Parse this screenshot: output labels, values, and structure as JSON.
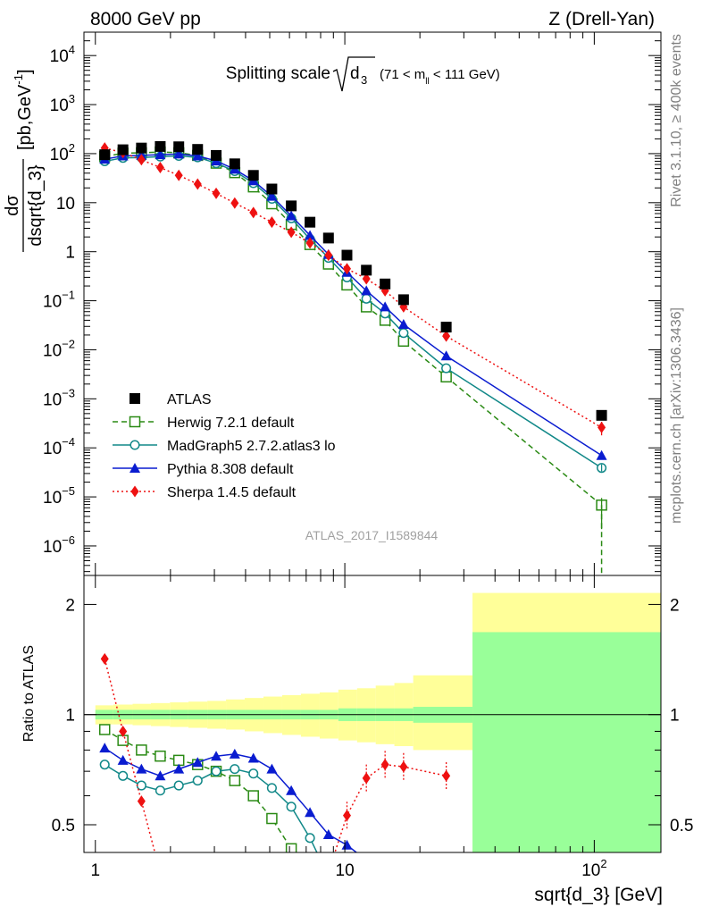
{
  "header": {
    "left": "8000 GeV pp",
    "right": "Z (Drell-Yan)"
  },
  "side_text": {
    "rivet": "Rivet 3.1.10, ≥ 400k events",
    "mcplots": "mcplots.cern.ch [arXiv:1306.3436]"
  },
  "watermark": "ATLAS_2017_I1589844",
  "colors": {
    "atlas": "#000000",
    "herwig": "#2a8a14",
    "madgraph": "#118888",
    "pythia": "#0a1cd0",
    "sherpa": "#ee1111",
    "band_outer": "#ffff99",
    "band_inner": "#99ff99"
  },
  "chart_data": [
    {
      "type": "line",
      "title_main": "Splitting scale",
      "title_sqrt": "d",
      "title_sub": "3",
      "title_range": "(71 < m",
      "title_range_sub": "ll",
      "title_range_end": " < 111 GeV)",
      "ylabel_num": "dσ",
      "ylabel_den": "dsqrt{d_3}",
      "ylabel_unit": "[pb,GeV",
      "ylabel_unit_sup": "-1",
      "ylabel_unit_end": "]",
      "xscale": "log",
      "yscale": "log",
      "xlim": [
        0.9,
        185
      ],
      "ylim": [
        2.5e-07,
        30000.0
      ],
      "x_tick_labels": [
        "1",
        "10",
        "10²"
      ],
      "y_tick_labels": [
        {
          "b": "10",
          "e": "4"
        },
        {
          "b": "10",
          "e": "3"
        },
        {
          "b": "10",
          "e": "2"
        },
        {
          "b": "10",
          "e": ""
        },
        {
          "b": "1",
          "e": ""
        },
        {
          "b": "10",
          "e": "−1"
        },
        {
          "b": "10",
          "e": "−2"
        },
        {
          "b": "10",
          "e": "−3"
        },
        {
          "b": "10",
          "e": "−4"
        },
        {
          "b": "10",
          "e": "−5"
        },
        {
          "b": "10",
          "e": "−6"
        }
      ],
      "legend_position": "bottom-left",
      "series": [
        {
          "name": "ATLAS",
          "key": "atlas",
          "x": [
            1.09,
            1.29,
            1.53,
            1.82,
            2.16,
            2.57,
            3.05,
            3.62,
            4.3,
            5.1,
            6.1,
            7.25,
            8.6,
            10.2,
            12.2,
            14.5,
            17.2,
            25.5,
            107
          ],
          "y": [
            95,
            120,
            130,
            140,
            138,
            122,
            92,
            62,
            36,
            19,
            8.6,
            4.0,
            1.9,
            0.85,
            0.42,
            0.22,
            0.105,
            0.029,
            0.00046
          ]
        },
        {
          "name": "Herwig 7.2.1 default",
          "key": "herwig",
          "x": [
            1.09,
            1.29,
            1.53,
            1.82,
            2.16,
            2.57,
            3.05,
            3.62,
            4.3,
            5.1,
            6.1,
            7.25,
            8.6,
            10.2,
            12.2,
            14.5,
            17.2,
            25.5,
            107
          ],
          "y": [
            87,
            102,
            104,
            108,
            104,
            92,
            64,
            41,
            21,
            9.5,
            3.6,
            1.4,
            0.56,
            0.21,
            0.075,
            0.04,
            0.015,
            0.0028,
            6.8e-06
          ]
        },
        {
          "name": "MadGraph5 2.7.2.atlas3 lo",
          "key": "madgraph",
          "x": [
            1.09,
            1.29,
            1.53,
            1.82,
            2.16,
            2.57,
            3.05,
            3.62,
            4.3,
            5.1,
            6.1,
            7.25,
            8.6,
            10.2,
            12.2,
            14.5,
            17.2,
            25.5,
            107
          ],
          "y": [
            70,
            82,
            83,
            87,
            90,
            84,
            64,
            44,
            25,
            12,
            4.8,
            1.8,
            0.75,
            0.3,
            0.11,
            0.055,
            0.022,
            0.0042,
            3.9e-05
          ]
        },
        {
          "name": "Pythia 8.308 default",
          "key": "pythia",
          "x": [
            1.09,
            1.29,
            1.53,
            1.82,
            2.16,
            2.57,
            3.05,
            3.62,
            4.3,
            5.1,
            6.1,
            7.25,
            8.6,
            10.2,
            12.2,
            14.5,
            17.2,
            25.5,
            107
          ],
          "y": [
            77,
            90,
            92,
            95,
            98,
            90,
            71,
            48,
            28,
            13.5,
            5.4,
            2.15,
            0.88,
            0.38,
            0.16,
            0.075,
            0.033,
            0.0075,
            7e-05
          ]
        },
        {
          "name": "Sherpa 1.4.5 default",
          "key": "sherpa",
          "x": [
            1.09,
            1.29,
            1.53,
            1.82,
            2.16,
            2.57,
            3.05,
            3.62,
            4.3,
            5.1,
            6.1,
            7.25,
            8.6,
            10.2,
            12.2,
            14.5,
            17.2,
            25.5,
            107
          ],
          "y": [
            130,
            105,
            75,
            52,
            36,
            24,
            15.5,
            9.8,
            6.3,
            4.0,
            2.5,
            1.5,
            0.85,
            0.45,
            0.28,
            0.16,
            0.075,
            0.019,
            0.00026
          ]
        }
      ]
    },
    {
      "type": "line",
      "ylabel": "Ratio to ATLAS",
      "xlabel": "sqrt{d_3} [GeV]",
      "xscale": "log",
      "yscale": "log",
      "xlim": [
        0.9,
        185
      ],
      "ylim": [
        0.42,
        2.4
      ],
      "y_tick_labels": [
        "0.5",
        "1",
        "2"
      ],
      "x_tick_labels": [
        "1",
        "10",
        "10²"
      ],
      "band": {
        "edges": [
          1.0,
          1.18,
          1.41,
          1.67,
          1.99,
          2.36,
          2.81,
          3.34,
          3.97,
          4.72,
          5.61,
          6.67,
          7.93,
          9.42,
          11.2,
          13.3,
          15.8,
          18.8,
          32.5,
          185
        ],
        "outer_low": [
          0.94,
          0.94,
          0.935,
          0.93,
          0.925,
          0.92,
          0.915,
          0.91,
          0.9,
          0.89,
          0.88,
          0.87,
          0.86,
          0.85,
          0.84,
          0.83,
          0.82,
          0.8,
          0.42
        ],
        "outer_high": [
          1.06,
          1.065,
          1.07,
          1.075,
          1.08,
          1.085,
          1.09,
          1.1,
          1.11,
          1.12,
          1.13,
          1.14,
          1.15,
          1.17,
          1.18,
          1.2,
          1.22,
          1.28,
          2.15
        ],
        "inner_low": [
          0.97,
          0.97,
          0.97,
          0.97,
          0.97,
          0.97,
          0.97,
          0.97,
          0.97,
          0.97,
          0.97,
          0.97,
          0.97,
          0.96,
          0.96,
          0.96,
          0.96,
          0.95,
          0.42
        ],
        "inner_high": [
          1.03,
          1.03,
          1.03,
          1.03,
          1.03,
          1.03,
          1.03,
          1.03,
          1.03,
          1.03,
          1.03,
          1.03,
          1.03,
          1.04,
          1.04,
          1.04,
          1.04,
          1.05,
          1.68
        ]
      },
      "series": [
        {
          "key": "herwig",
          "x": [
            1.09,
            1.29,
            1.53,
            1.82,
            2.16,
            2.57,
            3.05,
            3.62,
            4.3,
            5.1,
            6.1,
            7.2
          ],
          "y": [
            0.91,
            0.85,
            0.8,
            0.77,
            0.75,
            0.73,
            0.7,
            0.66,
            0.6,
            0.52,
            0.43,
            0.36
          ]
        },
        {
          "key": "madgraph",
          "x": [
            1.09,
            1.29,
            1.53,
            1.82,
            2.16,
            2.57,
            3.05,
            3.62,
            4.3,
            5.1,
            6.1,
            7.25,
            8.0
          ],
          "y": [
            0.73,
            0.68,
            0.64,
            0.62,
            0.64,
            0.66,
            0.7,
            0.71,
            0.69,
            0.63,
            0.56,
            0.46,
            0.4
          ]
        },
        {
          "key": "pythia",
          "x": [
            1.09,
            1.29,
            1.53,
            1.82,
            2.16,
            2.57,
            3.05,
            3.62,
            4.3,
            5.1,
            6.1,
            7.25,
            8.6,
            10.2,
            12.2
          ],
          "y": [
            0.81,
            0.75,
            0.71,
            0.68,
            0.71,
            0.74,
            0.77,
            0.78,
            0.76,
            0.71,
            0.62,
            0.54,
            0.47,
            0.44,
            0.4
          ]
        },
        {
          "key": "sherpa",
          "x": [
            1.09,
            1.29,
            1.53,
            1.8
          ],
          "y": [
            1.42,
            0.9,
            0.58,
            0.38
          ]
        },
        {
          "key": "sherpa",
          "x": [
            8.7,
            10.2,
            12.2,
            14.5,
            17.2,
            25.5
          ],
          "y": [
            0.38,
            0.53,
            0.67,
            0.73,
            0.72,
            0.68
          ]
        }
      ]
    }
  ]
}
